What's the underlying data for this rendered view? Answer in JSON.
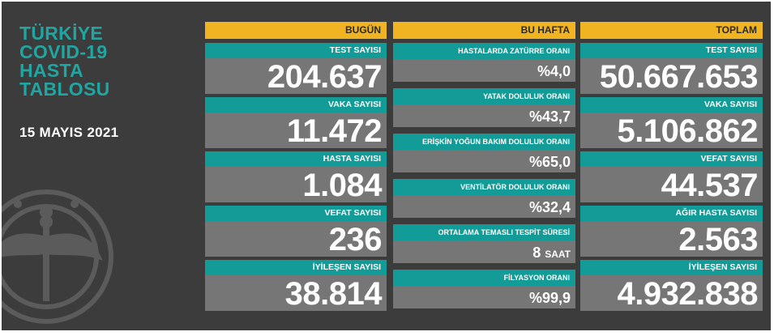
{
  "title_lines": [
    "TÜRKİYE",
    "COVID-19",
    "HASTA",
    "TABLOSU"
  ],
  "date": "15 MAYIS 2021",
  "headers": {
    "today": "BUGÜN",
    "week": "BU HAFTA",
    "total": "TOPLAM"
  },
  "today": [
    {
      "label": "TEST SAYISI",
      "value": "204.637"
    },
    {
      "label": "VAKA SAYISI",
      "value": "11.472"
    },
    {
      "label": "HASTA SAYISI",
      "value": "1.084"
    },
    {
      "label": "VEFAT SAYISI",
      "value": "236"
    },
    {
      "label": "İYİLEŞEN SAYISI",
      "value": "38.814"
    }
  ],
  "week": [
    {
      "label": "HASTALARDA ZATÜRRE ORANI",
      "value": "%4,0"
    },
    {
      "label": "YATAK DOLULUK ORANI",
      "value": "%43,7"
    },
    {
      "label": "ERİŞKİN YOĞUN BAKIM DOLULUK ORANI",
      "value": "%65,0"
    },
    {
      "label": "VENTİLATÖR DOLULUK ORANI",
      "value": "%32,4"
    },
    {
      "label": "ORTALAMA TEMASLI TESPİT SÜRESİ",
      "value": "8",
      "unit": "SAAT"
    },
    {
      "label": "FİLYASYON ORANI",
      "value": "%99,9"
    }
  ],
  "total": [
    {
      "label": "TEST SAYISI",
      "value": "50.667.653"
    },
    {
      "label": "VAKA SAYISI",
      "value": "5.106.862"
    },
    {
      "label": "VEFAT SAYISI",
      "value": "44.537"
    },
    {
      "label": "AĞIR HASTA SAYISI",
      "value": "2.563"
    },
    {
      "label": "İYİLEŞEN SAYISI",
      "value": "4.932.838"
    }
  ],
  "icons": {
    "emblem": "ministry-of-health-emblem-icon"
  },
  "colors": {
    "background": "#3c3c3c",
    "accent": "#f0b422",
    "teal": "#139b97",
    "value_bg": "#767676",
    "title": "#21a5a0"
  }
}
